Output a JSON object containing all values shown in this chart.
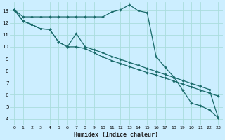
{
  "xlabel": "Humidex (Indice chaleur)",
  "bg_color": "#cceeff",
  "line_color": "#1a6b6b",
  "grid_color": "#aadddd",
  "xlim": [
    -0.5,
    23.5
  ],
  "ylim": [
    3.5,
    13.7
  ],
  "yticks": [
    4,
    5,
    6,
    7,
    8,
    9,
    10,
    11,
    12,
    13
  ],
  "xticks": [
    0,
    1,
    2,
    3,
    4,
    5,
    6,
    7,
    8,
    9,
    10,
    11,
    12,
    13,
    14,
    15,
    16,
    17,
    18,
    19,
    20,
    21,
    22,
    23
  ],
  "line1_x": [
    0,
    1,
    2,
    3,
    4,
    5,
    6,
    7,
    8,
    9,
    10,
    11,
    12,
    13,
    14,
    15,
    16,
    17,
    18,
    19,
    20,
    21,
    22,
    23
  ],
  "line1_y": [
    13.1,
    12.5,
    12.5,
    12.5,
    12.5,
    12.5,
    12.5,
    12.5,
    12.5,
    12.5,
    12.5,
    12.9,
    13.1,
    13.5,
    13.0,
    12.85,
    9.2,
    8.3,
    7.5,
    6.4,
    5.3,
    5.1,
    4.75,
    4.1
  ],
  "line2_x": [
    0,
    1,
    2,
    3,
    4,
    5,
    6,
    7,
    8,
    9,
    10,
    11,
    12,
    13,
    14,
    15,
    16,
    17,
    18,
    19,
    20,
    21,
    22,
    23
  ],
  "line2_y": [
    13.1,
    12.15,
    11.85,
    11.5,
    11.45,
    10.4,
    10.0,
    10.0,
    9.85,
    9.5,
    9.15,
    8.85,
    8.6,
    8.35,
    8.1,
    7.85,
    7.65,
    7.4,
    7.15,
    6.9,
    6.65,
    6.4,
    6.15,
    5.9
  ],
  "line3_x": [
    0,
    1,
    2,
    3,
    4,
    5,
    6,
    7,
    8,
    9,
    10,
    11,
    12,
    13,
    14,
    15,
    16,
    17,
    18,
    19,
    20,
    21,
    22,
    23
  ],
  "line3_y": [
    13.1,
    12.15,
    11.85,
    11.5,
    11.45,
    10.4,
    10.0,
    11.1,
    10.0,
    9.75,
    9.5,
    9.2,
    8.95,
    8.7,
    8.45,
    8.2,
    7.95,
    7.7,
    7.45,
    7.2,
    6.95,
    6.7,
    6.45,
    4.1
  ],
  "marker": "D",
  "marker_size": 2.2,
  "linewidth": 0.9
}
